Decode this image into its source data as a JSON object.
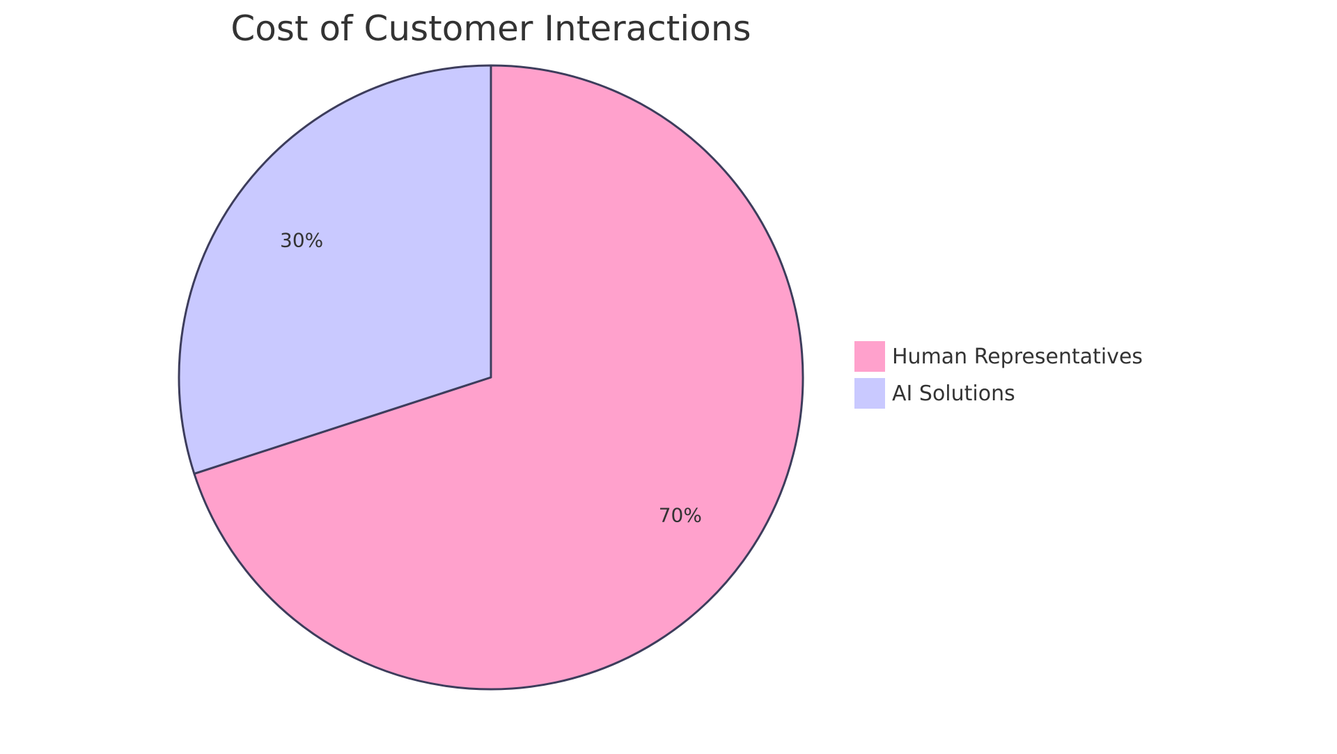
{
  "chart_data": {
    "type": "pie",
    "title": "Cost of Customer Interactions",
    "slices": [
      {
        "label": "Human Representatives",
        "value": 70,
        "display": "70%",
        "color": "#FFA1CC"
      },
      {
        "label": "AI Solutions",
        "value": 30,
        "display": "30%",
        "color": "#C9C9FF"
      }
    ],
    "stroke_color": "#3D3D5C",
    "legend_position": "right"
  }
}
